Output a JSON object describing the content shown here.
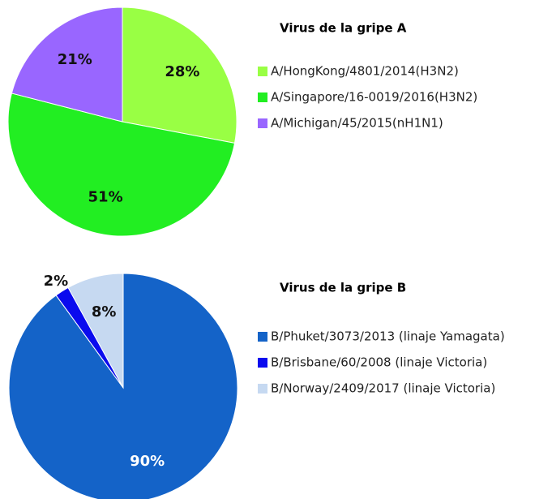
{
  "chart_data": [
    {
      "type": "pie",
      "title": "Virus de la gripe A",
      "categories": [
        "A/HongKong/4801/2014(H3N2)",
        "A/Singapore/16-0019/2016(H3N2)",
        "A/Michigan/45/2015(nH1N1)"
      ],
      "values": [
        28,
        51,
        21
      ],
      "value_labels": [
        "28%",
        "51%",
        "21%"
      ],
      "colors": [
        "#99ff44",
        "#22ee22",
        "#9966ff"
      ]
    },
    {
      "type": "pie",
      "title": "Virus de la gripe B",
      "categories": [
        "B/Phuket/3073/2013 (linaje Yamagata)",
        "B/Brisbane/60/2008 (linaje Victoria)",
        "B/Norway/2409/2017 (linaje Victoria)"
      ],
      "values": [
        90,
        2,
        8
      ],
      "value_labels": [
        "90%",
        "2%",
        "8%"
      ],
      "colors": [
        "#1463c8",
        "#0a0aee",
        "#c6d9f1"
      ]
    }
  ]
}
